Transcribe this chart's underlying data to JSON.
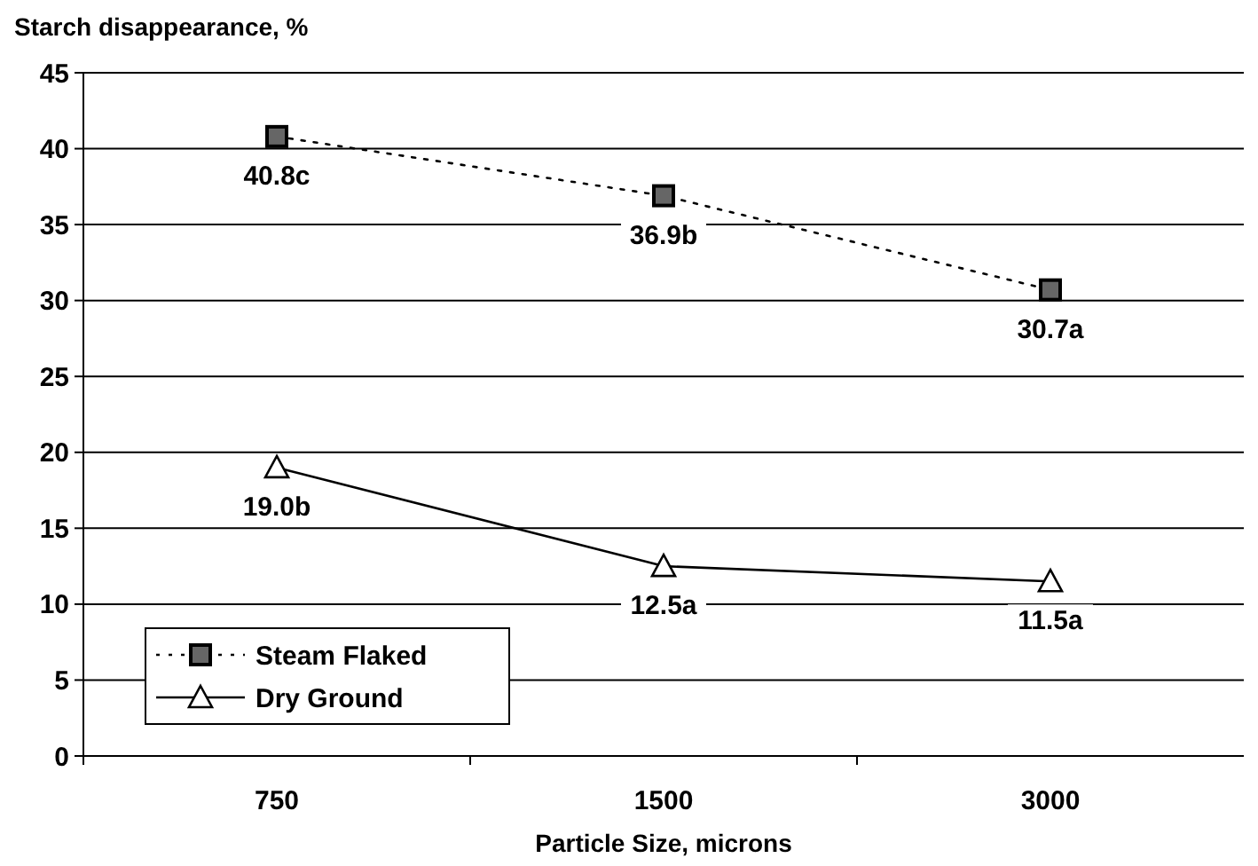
{
  "chart_data": {
    "type": "line",
    "ylabel": "Starch disappearance, %",
    "xlabel": "Particle Size, microns",
    "categories": [
      "750",
      "1500",
      "3000"
    ],
    "series": [
      {
        "name": "Steam Flaked",
        "color": "#000000",
        "values": [
          40.8,
          36.9,
          30.7
        ],
        "marker": "square",
        "line_style": "dotted",
        "value_labels": [
          "40.8c",
          "36.9b",
          "30.7a"
        ]
      },
      {
        "name": "Dry Ground",
        "color": "#000000",
        "values": [
          19.0,
          12.5,
          11.5
        ],
        "marker": "triangle",
        "line_style": "solid",
        "value_labels": [
          "19.0b",
          "12.5a",
          "11.5a"
        ]
      }
    ],
    "ylim": [
      0,
      45
    ],
    "yticks": [
      0,
      5,
      10,
      15,
      20,
      25,
      30,
      35,
      40,
      45
    ],
    "grid": "y",
    "legend": "bottom left"
  }
}
